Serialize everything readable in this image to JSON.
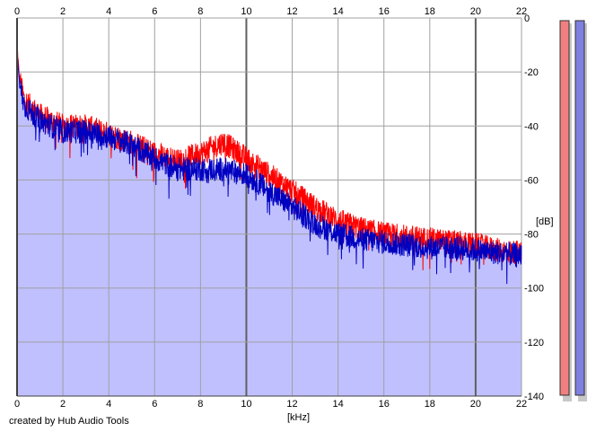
{
  "chart_data": {
    "type": "line",
    "title": "",
    "xlabel": "[kHz]",
    "ylabel": "[dB]",
    "xlim": [
      0,
      22
    ],
    "ylim": [
      -140,
      0
    ],
    "x_ticks": [
      "0",
      "2",
      "4",
      "6",
      "8",
      "10",
      "12",
      "14",
      "16",
      "18",
      "20",
      "22"
    ],
    "y_ticks": [
      "0",
      "-20",
      "-40",
      "-60",
      "-80",
      "-100",
      "-120",
      "-140"
    ],
    "grid": true,
    "legend": "none",
    "colors": {
      "red": "#ff0000",
      "blue": "#0000c0",
      "fill": "#c0c0ff",
      "bar_red": "#f08080",
      "bar_blue": "#8080e0"
    },
    "x": [
      0,
      0.1,
      0.3,
      0.5,
      1,
      1.5,
      2,
      3,
      4,
      5,
      6,
      7,
      8,
      9,
      10,
      11,
      12,
      13,
      14,
      15,
      16,
      17,
      18,
      19,
      20,
      21,
      22
    ],
    "series": [
      {
        "values": [
          -10,
          -22,
          -30,
          -32,
          -36,
          -38,
          -40,
          -40,
          -43,
          -46,
          -50,
          -53,
          -50,
          -46,
          -52,
          -58,
          -64,
          -70,
          -75,
          -78,
          -80,
          -81,
          -82,
          -83,
          -84,
          -86,
          -87
        ]
      },
      {
        "values": [
          -12,
          -24,
          -32,
          -34,
          -38,
          -40,
          -42,
          -42,
          -44,
          -47,
          -52,
          -56,
          -56,
          -56,
          -58,
          -64,
          -70,
          -76,
          -80,
          -82,
          -83,
          -84,
          -85,
          -85,
          -86,
          -87,
          -88
        ]
      }
    ],
    "credit": "created by Hub Audio Tools"
  }
}
